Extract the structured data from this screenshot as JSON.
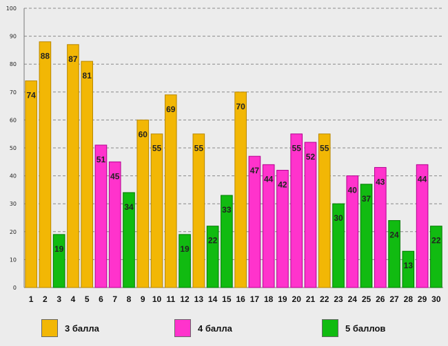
{
  "chart_data": {
    "type": "bar",
    "categories": [
      "1",
      "2",
      "3",
      "4",
      "5",
      "6",
      "7",
      "8",
      "9",
      "10",
      "11",
      "12",
      "13",
      "14",
      "15",
      "16",
      "17",
      "18",
      "19",
      "20",
      "21",
      "22",
      "23",
      "24",
      "25",
      "26",
      "27",
      "28",
      "29",
      "30"
    ],
    "values": [
      74,
      88,
      19,
      87,
      81,
      51,
      45,
      34,
      60,
      55,
      69,
      19,
      55,
      22,
      33,
      70,
      47,
      44,
      42,
      55,
      52,
      55,
      30,
      40,
      37,
      43,
      24,
      13,
      44,
      22
    ],
    "groups": [
      "3",
      "3",
      "5",
      "3",
      "3",
      "4",
      "4",
      "5",
      "3",
      "3",
      "3",
      "5",
      "3",
      "5",
      "5",
      "3",
      "4",
      "4",
      "4",
      "4",
      "4",
      "3",
      "5",
      "4",
      "5",
      "4",
      "5",
      "5",
      "4",
      "5"
    ],
    "ylim": [
      0,
      100
    ],
    "yticks": [
      0,
      10,
      20,
      30,
      40,
      50,
      60,
      70,
      80,
      90,
      100
    ],
    "grid": true,
    "title": "",
    "xlabel": "",
    "ylabel": "",
    "legend": [
      {
        "key": "3",
        "label": "3 балла",
        "color": "#f2b705"
      },
      {
        "key": "4",
        "label": "4 балла",
        "color": "#ff33cc"
      },
      {
        "key": "5",
        "label": "5 баллов",
        "color": "#11bb11"
      }
    ],
    "legend_position": "bottom"
  }
}
